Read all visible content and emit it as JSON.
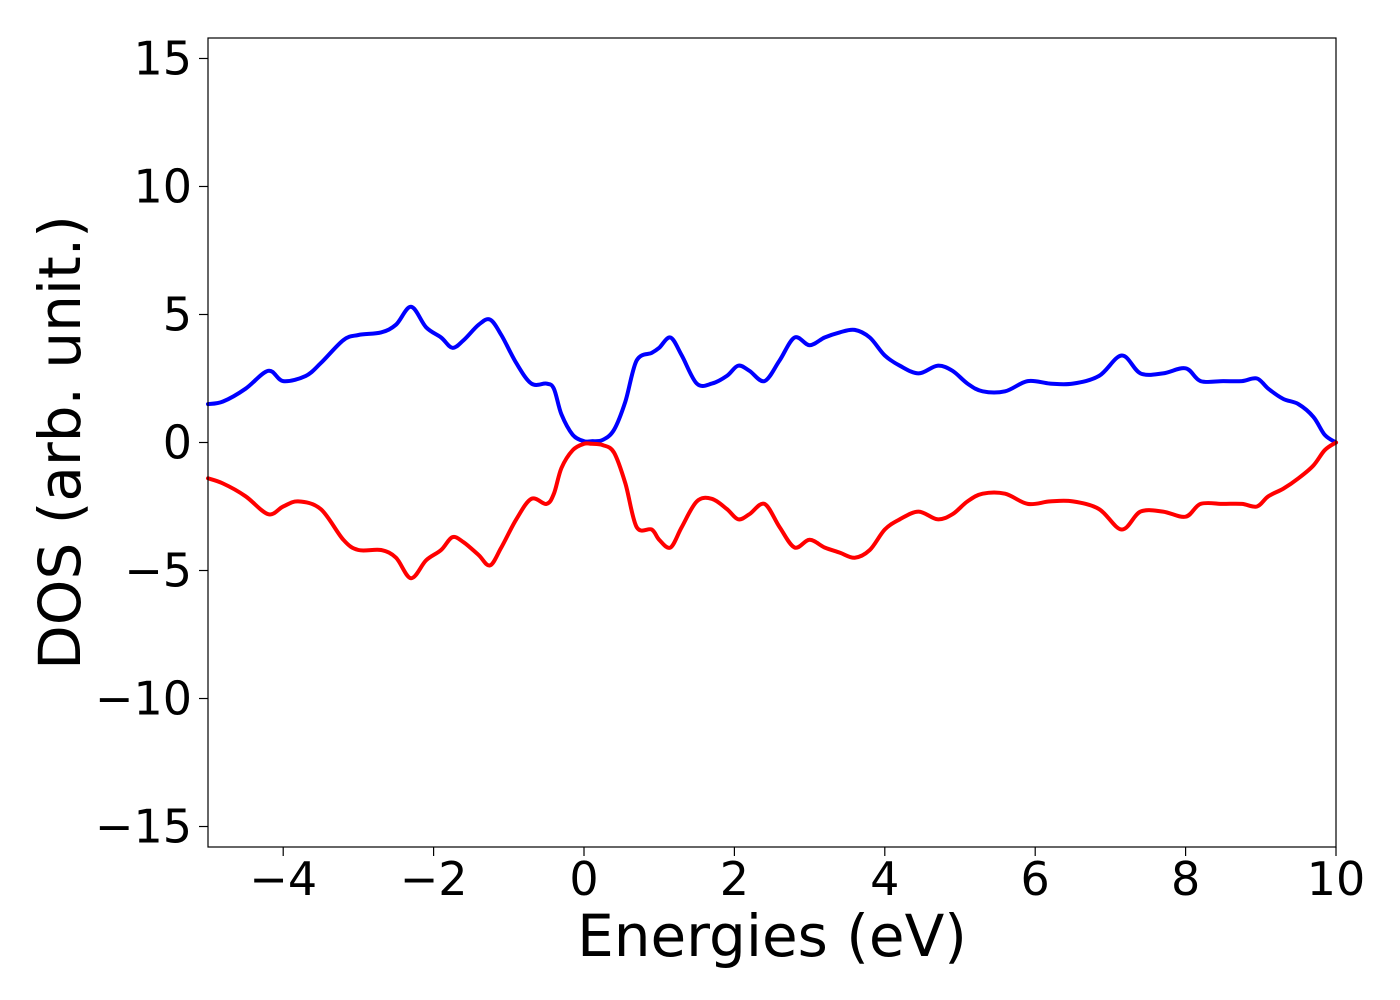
{
  "chart_data": {
    "type": "line",
    "title": "",
    "xlabel": "Energies (eV)",
    "ylabel": "DOS (arb. unit.)",
    "xlim": [
      -5,
      10
    ],
    "ylim": [
      -15.8,
      15.8
    ],
    "x_ticks": [
      -4,
      -2,
      0,
      2,
      4,
      6,
      8,
      10
    ],
    "x_tick_labels": [
      "−4",
      "−2",
      "0",
      "2",
      "4",
      "6",
      "8",
      "10"
    ],
    "y_ticks": [
      15,
      10,
      5,
      0,
      -5,
      -10,
      -15
    ],
    "y_tick_labels": [
      "15",
      "10",
      "5",
      "0",
      "−5",
      "−10",
      "−15"
    ],
    "grid": false,
    "legend": "none",
    "series": [
      {
        "color": "#0000ff",
        "x": [
          -5.0,
          -4.8,
          -4.5,
          -4.2,
          -4.0,
          -3.7,
          -3.5,
          -3.2,
          -3.0,
          -2.7,
          -2.5,
          -2.3,
          -2.1,
          -1.9,
          -1.75,
          -1.6,
          -1.4,
          -1.25,
          -1.1,
          -0.9,
          -0.7,
          -0.5,
          -0.4,
          -0.3,
          -0.15,
          0.0,
          0.1,
          0.25,
          0.4,
          0.55,
          0.7,
          0.9,
          1.0,
          1.15,
          1.3,
          1.5,
          1.7,
          1.9,
          2.05,
          2.2,
          2.4,
          2.6,
          2.8,
          3.0,
          3.2,
          3.4,
          3.6,
          3.8,
          4.0,
          4.2,
          4.45,
          4.7,
          4.9,
          5.1,
          5.3,
          5.6,
          5.9,
          6.2,
          6.5,
          6.85,
          7.15,
          7.4,
          7.7,
          8.0,
          8.2,
          8.5,
          8.75,
          8.95,
          9.1,
          9.3,
          9.5,
          9.7,
          9.85,
          10.0
        ],
        "values": [
          1.5,
          1.6,
          2.1,
          2.8,
          2.4,
          2.6,
          3.1,
          4.0,
          4.2,
          4.3,
          4.6,
          5.3,
          4.5,
          4.1,
          3.7,
          4.0,
          4.6,
          4.8,
          4.2,
          3.1,
          2.3,
          2.3,
          2.1,
          1.1,
          0.3,
          0.05,
          0.05,
          0.1,
          0.5,
          1.6,
          3.2,
          3.5,
          3.7,
          4.1,
          3.4,
          2.3,
          2.3,
          2.6,
          3.0,
          2.8,
          2.4,
          3.2,
          4.1,
          3.8,
          4.1,
          4.3,
          4.4,
          4.1,
          3.4,
          3.0,
          2.7,
          3.0,
          2.8,
          2.3,
          2.0,
          2.0,
          2.4,
          2.3,
          2.3,
          2.6,
          3.4,
          2.7,
          2.7,
          2.9,
          2.4,
          2.4,
          2.4,
          2.5,
          2.1,
          1.7,
          1.5,
          1.0,
          0.3,
          0.0
        ]
      },
      {
        "color": "#ff0000",
        "x": [
          -5.0,
          -4.8,
          -4.5,
          -4.2,
          -4.0,
          -3.8,
          -3.5,
          -3.2,
          -3.0,
          -2.7,
          -2.5,
          -2.3,
          -2.1,
          -1.9,
          -1.75,
          -1.6,
          -1.4,
          -1.25,
          -1.1,
          -0.9,
          -0.7,
          -0.5,
          -0.4,
          -0.3,
          -0.15,
          0.0,
          0.1,
          0.25,
          0.4,
          0.55,
          0.7,
          0.9,
          1.0,
          1.15,
          1.3,
          1.5,
          1.7,
          1.9,
          2.05,
          2.2,
          2.4,
          2.6,
          2.8,
          3.0,
          3.2,
          3.4,
          3.6,
          3.8,
          4.0,
          4.2,
          4.45,
          4.7,
          4.9,
          5.1,
          5.3,
          5.6,
          5.9,
          6.2,
          6.5,
          6.85,
          7.15,
          7.4,
          7.7,
          8.0,
          8.2,
          8.5,
          8.75,
          8.95,
          9.1,
          9.3,
          9.5,
          9.7,
          9.85,
          10.0
        ],
        "values": [
          -1.4,
          -1.6,
          -2.1,
          -2.8,
          -2.5,
          -2.3,
          -2.6,
          -3.8,
          -4.2,
          -4.2,
          -4.5,
          -5.3,
          -4.6,
          -4.2,
          -3.7,
          -3.9,
          -4.4,
          -4.8,
          -4.1,
          -3.0,
          -2.2,
          -2.4,
          -2.0,
          -1.0,
          -0.3,
          -0.05,
          -0.05,
          -0.1,
          -0.4,
          -1.6,
          -3.3,
          -3.4,
          -3.8,
          -4.1,
          -3.3,
          -2.3,
          -2.2,
          -2.6,
          -3.0,
          -2.8,
          -2.4,
          -3.3,
          -4.1,
          -3.8,
          -4.1,
          -4.3,
          -4.5,
          -4.2,
          -3.4,
          -3.0,
          -2.7,
          -3.0,
          -2.8,
          -2.3,
          -2.0,
          -2.0,
          -2.4,
          -2.3,
          -2.3,
          -2.6,
          -3.4,
          -2.7,
          -2.7,
          -2.9,
          -2.4,
          -2.4,
          -2.4,
          -2.5,
          -2.1,
          -1.8,
          -1.4,
          -0.9,
          -0.3,
          0.0
        ]
      }
    ]
  }
}
